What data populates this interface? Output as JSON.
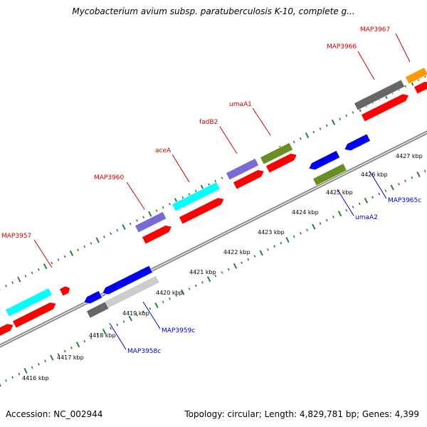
{
  "title": "Mycobacterium avium subsp. paratuberculosis K-10, complete g...",
  "accession": "Accession: NC_002944",
  "summary": "Topology: circular; Length: 4,829,781 bp; Genes: 4,399",
  "ruler_labels": [
    "4416 kbp",
    "4417 kbp",
    "4418 kbp",
    "4419 kbp",
    "4420 kbp",
    "4421 kbp",
    "4422 kbp",
    "4423 kbp",
    "4424 kbp",
    "4425 kbp",
    "4426 kbp",
    "4427 kbp"
  ],
  "gene_labels": [
    {
      "text": "MAP3967",
      "color": "#cc0000"
    },
    {
      "text": "MAP3966",
      "color": "#cc0000"
    },
    {
      "text": "umaA1",
      "color": "#cc0000"
    },
    {
      "text": "fadB2",
      "color": "#cc0000"
    },
    {
      "text": "aceA",
      "color": "#cc0000"
    },
    {
      "text": "MAP3960",
      "color": "#cc0000"
    },
    {
      "text": "MAP3957",
      "color": "#cc0000"
    },
    {
      "text": "MAP3965c",
      "color": "#0000cc"
    },
    {
      "text": "umaA2",
      "color": "#0000cc"
    },
    {
      "text": "MAP3959c",
      "color": "#0000cc"
    },
    {
      "text": "MAP3958c",
      "color": "#0000cc"
    }
  ],
  "colors": {
    "cds": "#ff0000",
    "cyan": "#00ffff",
    "blue": "#0000ee",
    "purple": "#7a6ad6",
    "olive": "#6b8e23",
    "orange": "#ff9900",
    "darkgray": "#666666",
    "lightgray": "#cccccc",
    "tick": "#2e7d32",
    "backbone": "#888888"
  }
}
